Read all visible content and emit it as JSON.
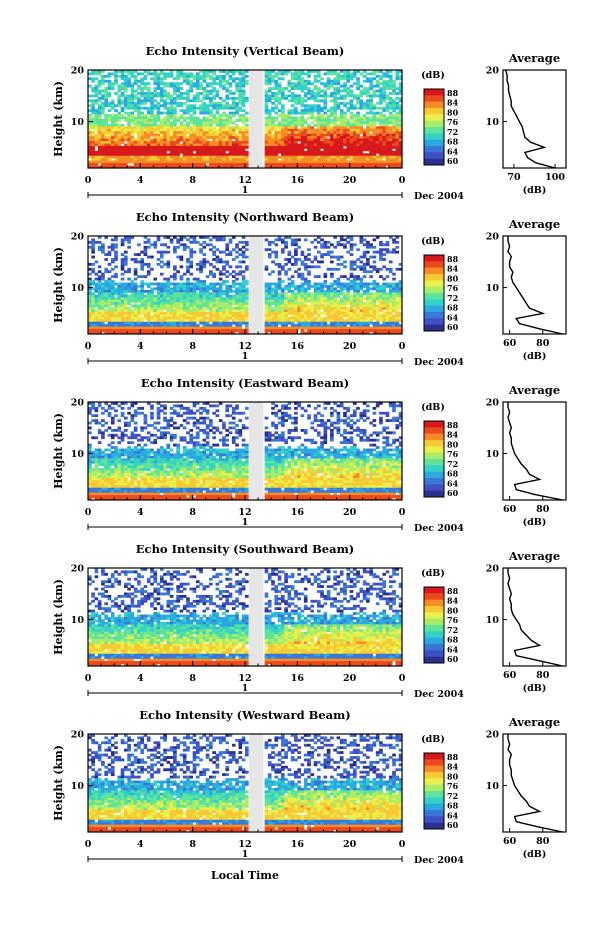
{
  "figure": {
    "date_label": "Dec 2004",
    "day_label": "1",
    "x_label": "Local Time"
  },
  "colorbar": {
    "unit": "(dB)",
    "ticks": [
      "88",
      "84",
      "80",
      "76",
      "72",
      "68",
      "64",
      "60"
    ],
    "colors": [
      "#2b2f8e",
      "#3f4fc4",
      "#3a78d8",
      "#2aa9e0",
      "#33d1c8",
      "#5ee39a",
      "#a8ec6a",
      "#e9f04c",
      "#f7c934",
      "#f58c26",
      "#ec4a1e",
      "#d7191c"
    ]
  },
  "chart_data": [
    {
      "type": "heatmap",
      "title": "Echo Intensity (Vertical Beam)",
      "ylabel": "Height (km)",
      "x_ticks": [
        "0",
        "4",
        "8",
        "12",
        "16",
        "20",
        "0"
      ],
      "y_ticks": [
        "20",
        "10"
      ],
      "xlim": [
        0,
        24
      ],
      "ylim": [
        1,
        20
      ],
      "profile": {
        "title": "Average",
        "xlabel": "(dB)",
        "x_ticks": [
          "70",
          "100"
        ],
        "xlim": [
          62,
          108
        ],
        "heights": [
          1,
          2,
          3,
          4,
          5,
          6,
          7,
          8,
          9,
          10,
          11,
          12,
          13,
          14,
          15,
          16,
          17,
          18,
          19,
          20
        ],
        "values": [
          100,
          86,
          80,
          78,
          92,
          82,
          78,
          77,
          76,
          74,
          72,
          70,
          68,
          68,
          67,
          66,
          66,
          65,
          65,
          64
        ]
      }
    },
    {
      "type": "heatmap",
      "title": "Echo Intensity (Northward Beam)",
      "ylabel": "Height (km)",
      "x_ticks": [
        "0",
        "4",
        "8",
        "12",
        "16",
        "20",
        "0"
      ],
      "y_ticks": [
        "20",
        "10"
      ],
      "xlim": [
        0,
        24
      ],
      "ylim": [
        1,
        20
      ],
      "profile": {
        "title": "Average",
        "xlabel": "(dB)",
        "x_ticks": [
          "60",
          "80"
        ],
        "xlim": [
          56,
          94
        ],
        "heights": [
          1,
          2,
          3,
          4,
          5,
          6,
          7,
          8,
          9,
          10,
          11,
          12,
          13,
          14,
          15,
          16,
          17,
          18,
          19,
          20
        ],
        "values": [
          92,
          78,
          66,
          64,
          80,
          72,
          70,
          68,
          66,
          64,
          62,
          61,
          62,
          60,
          60,
          61,
          59,
          60,
          59,
          59
        ]
      }
    },
    {
      "type": "heatmap",
      "title": "Echo Intensity (Eastward Beam)",
      "ylabel": "Height (km)",
      "x_ticks": [
        "0",
        "4",
        "8",
        "12",
        "16",
        "20",
        "0"
      ],
      "y_ticks": [
        "20",
        "10"
      ],
      "xlim": [
        0,
        24
      ],
      "ylim": [
        1,
        20
      ],
      "profile": {
        "title": "Average",
        "xlabel": "(dB)",
        "x_ticks": [
          "60",
          "80"
        ],
        "xlim": [
          56,
          94
        ],
        "heights": [
          1,
          2,
          3,
          4,
          5,
          6,
          7,
          8,
          9,
          10,
          11,
          12,
          13,
          14,
          15,
          16,
          17,
          18,
          19,
          20
        ],
        "values": [
          92,
          76,
          64,
          63,
          78,
          72,
          70,
          67,
          65,
          63,
          62,
          61,
          61,
          60,
          61,
          60,
          59,
          60,
          59,
          59
        ]
      }
    },
    {
      "type": "heatmap",
      "title": "Echo Intensity (Southward Beam)",
      "ylabel": "Height (km)",
      "x_ticks": [
        "0",
        "4",
        "8",
        "12",
        "16",
        "20",
        "0"
      ],
      "y_ticks": [
        "20",
        "10"
      ],
      "xlim": [
        0,
        24
      ],
      "ylim": [
        1,
        20
      ],
      "profile": {
        "title": "Average",
        "xlabel": "(dB)",
        "x_ticks": [
          "60",
          "80"
        ],
        "xlim": [
          56,
          94
        ],
        "heights": [
          1,
          2,
          3,
          4,
          5,
          6,
          7,
          8,
          9,
          10,
          11,
          12,
          13,
          14,
          15,
          16,
          17,
          18,
          19,
          20
        ],
        "values": [
          92,
          78,
          64,
          63,
          78,
          73,
          70,
          67,
          66,
          64,
          62,
          61,
          61,
          60,
          61,
          60,
          59,
          60,
          59,
          59
        ]
      }
    },
    {
      "type": "heatmap",
      "title": "Echo Intensity (Westward Beam)",
      "ylabel": "Height (km)",
      "x_ticks": [
        "0",
        "4",
        "8",
        "12",
        "16",
        "20",
        "0"
      ],
      "y_ticks": [
        "20",
        "10"
      ],
      "xlim": [
        0,
        24
      ],
      "ylim": [
        1,
        20
      ],
      "profile": {
        "title": "Average",
        "xlabel": "(dB)",
        "x_ticks": [
          "60",
          "80"
        ],
        "xlim": [
          56,
          94
        ],
        "heights": [
          1,
          2,
          3,
          4,
          5,
          6,
          7,
          8,
          9,
          10,
          11,
          12,
          13,
          14,
          15,
          16,
          17,
          18,
          19,
          20
        ],
        "values": [
          92,
          77,
          64,
          63,
          78,
          72,
          70,
          67,
          65,
          63,
          62,
          61,
          61,
          60,
          60,
          61,
          59,
          60,
          59,
          59
        ]
      }
    }
  ]
}
